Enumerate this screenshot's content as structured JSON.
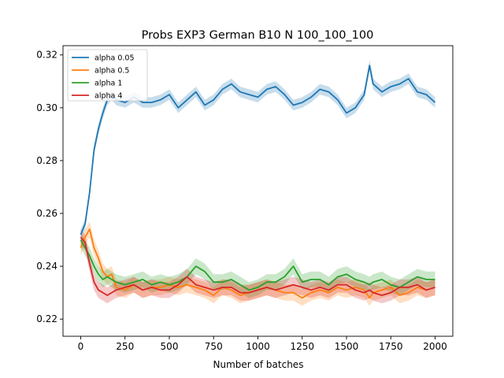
{
  "chart_data": {
    "type": "line",
    "title": "Probs EXP3 German B10 N 100_100_100",
    "xlabel": "Number of batches",
    "ylabel": "",
    "xlim": [
      -100,
      2100
    ],
    "ylim": [
      0.2135,
      0.3235
    ],
    "xticks": [
      0,
      250,
      500,
      750,
      1000,
      1250,
      1500,
      1750,
      2000
    ],
    "yticks": [
      0.22,
      0.24,
      0.26,
      0.28,
      0.3,
      0.32
    ],
    "ytick_labels": [
      "0.22",
      "0.24",
      "0.26",
      "0.28",
      "0.30",
      "0.32"
    ],
    "grid": false,
    "legend_position": "top-left",
    "x": [
      0,
      25,
      50,
      75,
      100,
      125,
      150,
      175,
      200,
      250,
      300,
      350,
      400,
      450,
      500,
      550,
      600,
      650,
      700,
      750,
      800,
      850,
      900,
      950,
      1000,
      1050,
      1100,
      1150,
      1200,
      1250,
      1300,
      1350,
      1400,
      1450,
      1500,
      1550,
      1600,
      1630,
      1650,
      1700,
      1750,
      1800,
      1850,
      1900,
      1950,
      2000
    ],
    "series": [
      {
        "name": "alpha 0.05",
        "color": "#1f77b4",
        "values": [
          0.252,
          0.256,
          0.268,
          0.284,
          0.292,
          0.298,
          0.303,
          0.305,
          0.303,
          0.302,
          0.304,
          0.302,
          0.302,
          0.303,
          0.305,
          0.3,
          0.303,
          0.306,
          0.301,
          0.303,
          0.307,
          0.309,
          0.306,
          0.305,
          0.304,
          0.307,
          0.308,
          0.305,
          0.301,
          0.302,
          0.304,
          0.307,
          0.306,
          0.303,
          0.298,
          0.3,
          0.305,
          0.316,
          0.309,
          0.306,
          0.308,
          0.309,
          0.311,
          0.306,
          0.305,
          0.302
        ],
        "band": 0.002
      },
      {
        "name": "alpha 0.5",
        "color": "#ff7f0e",
        "values": [
          0.247,
          0.251,
          0.254,
          0.247,
          0.243,
          0.238,
          0.236,
          0.237,
          0.232,
          0.231,
          0.233,
          0.231,
          0.232,
          0.232,
          0.233,
          0.232,
          0.233,
          0.232,
          0.231,
          0.229,
          0.232,
          0.231,
          0.229,
          0.23,
          0.231,
          0.232,
          0.231,
          0.23,
          0.23,
          0.228,
          0.23,
          0.231,
          0.23,
          0.232,
          0.231,
          0.232,
          0.231,
          0.228,
          0.23,
          0.231,
          0.232,
          0.229,
          0.23,
          0.232,
          0.231,
          0.232
        ],
        "band": 0.003
      },
      {
        "name": "alpha 1",
        "color": "#2ca02c",
        "values": [
          0.25,
          0.247,
          0.244,
          0.24,
          0.237,
          0.235,
          0.236,
          0.235,
          0.234,
          0.233,
          0.234,
          0.235,
          0.233,
          0.234,
          0.233,
          0.234,
          0.236,
          0.24,
          0.238,
          0.234,
          0.234,
          0.235,
          0.233,
          0.231,
          0.232,
          0.234,
          0.234,
          0.236,
          0.24,
          0.234,
          0.235,
          0.235,
          0.233,
          0.236,
          0.237,
          0.235,
          0.234,
          0.233,
          0.234,
          0.235,
          0.233,
          0.232,
          0.234,
          0.236,
          0.235,
          0.235
        ],
        "band": 0.003
      },
      {
        "name": "alpha 4",
        "color": "#d62728",
        "values": [
          0.251,
          0.249,
          0.241,
          0.234,
          0.231,
          0.23,
          0.229,
          0.23,
          0.231,
          0.232,
          0.233,
          0.231,
          0.232,
          0.231,
          0.231,
          0.233,
          0.236,
          0.233,
          0.232,
          0.231,
          0.232,
          0.232,
          0.23,
          0.23,
          0.231,
          0.232,
          0.231,
          0.232,
          0.233,
          0.232,
          0.231,
          0.232,
          0.231,
          0.233,
          0.233,
          0.231,
          0.23,
          0.231,
          0.23,
          0.229,
          0.23,
          0.232,
          0.232,
          0.233,
          0.231,
          0.232
        ],
        "band": 0.003
      }
    ]
  }
}
